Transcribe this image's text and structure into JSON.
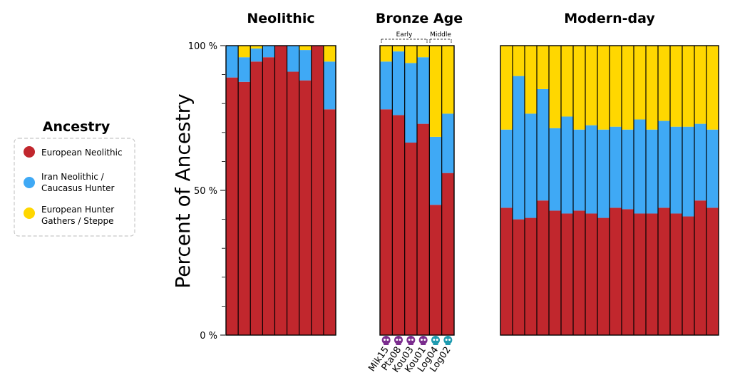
{
  "colors": {
    "european_neolithic": "#c1272d",
    "iran_neolithic": "#3fa9f5",
    "hunter_gatherers": "#ffd700",
    "skull_purple": "#7b2d8e",
    "skull_teal": "#1f9bb0"
  },
  "legend": {
    "title": "Ancestry",
    "items": [
      {
        "key": "european_neolithic",
        "lines": [
          "European Neolithic"
        ]
      },
      {
        "key": "iran_neolithic",
        "lines": [
          "Iran Neolithic /",
          "Caucasus Hunter"
        ]
      },
      {
        "key": "hunter_gatherers",
        "lines": [
          "European Hunter",
          "Gathers / Steppe"
        ]
      }
    ]
  },
  "chart_data": {
    "type": "bar",
    "stacked": true,
    "ylabel": "Percent of Ancestry",
    "ylim": [
      0,
      100
    ],
    "yticks": [
      {
        "value": 100,
        "label": "100 %"
      },
      {
        "value": 50,
        "label": "50 %"
      },
      {
        "value": 0,
        "label": "0 %"
      }
    ],
    "series_order": [
      "european_neolithic",
      "iran_neolithic",
      "hunter_gatherers"
    ],
    "panels": [
      {
        "title": "Neolithic",
        "samples": [
          {
            "label": "",
            "values": [
              89,
              11,
              0
            ]
          },
          {
            "label": "",
            "values": [
              87.5,
              8.5,
              4
            ]
          },
          {
            "label": "",
            "values": [
              94.5,
              4.5,
              1
            ]
          },
          {
            "label": "",
            "values": [
              96,
              4,
              0
            ]
          },
          {
            "label": "",
            "values": [
              100,
              0,
              0
            ]
          },
          {
            "label": "",
            "values": [
              91,
              9,
              0
            ]
          },
          {
            "label": "",
            "values": [
              88,
              10.5,
              1.5
            ]
          },
          {
            "label": "",
            "values": [
              100,
              0,
              0
            ]
          },
          {
            "label": "",
            "values": [
              78,
              16.5,
              5.5
            ]
          }
        ]
      },
      {
        "title": "Bronze Age",
        "groups": [
          {
            "label": "Early",
            "from": 0,
            "to": 3
          },
          {
            "label": "Middle",
            "from": 4,
            "to": 5
          }
        ],
        "samples": [
          {
            "label": "Mik15",
            "skull": "purple",
            "values": [
              78,
              16.5,
              5.5
            ]
          },
          {
            "label": "Pta08",
            "skull": "purple",
            "values": [
              76,
              22,
              2
            ]
          },
          {
            "label": "Kou03",
            "skull": "purple",
            "values": [
              66.5,
              27.5,
              6
            ]
          },
          {
            "label": "Kou01",
            "skull": "purple",
            "values": [
              73,
              23,
              4
            ]
          },
          {
            "label": "Log04",
            "skull": "teal",
            "values": [
              45,
              23.5,
              31.5
            ]
          },
          {
            "label": "Log02",
            "skull": "teal",
            "values": [
              56,
              20.5,
              23.5
            ]
          }
        ]
      },
      {
        "title": "Modern-day",
        "samples": [
          {
            "label": "",
            "values": [
              44,
              27,
              29
            ]
          },
          {
            "label": "",
            "values": [
              40,
              49.5,
              10.5
            ]
          },
          {
            "label": "",
            "values": [
              40.5,
              36,
              23.5
            ]
          },
          {
            "label": "",
            "values": [
              46.5,
              38.5,
              15
            ]
          },
          {
            "label": "",
            "values": [
              43,
              28.5,
              28.5
            ]
          },
          {
            "label": "",
            "values": [
              42,
              33.5,
              24.5
            ]
          },
          {
            "label": "",
            "values": [
              43,
              28,
              29
            ]
          },
          {
            "label": "",
            "values": [
              42,
              30.5,
              27.5
            ]
          },
          {
            "label": "",
            "values": [
              40.5,
              30.5,
              29
            ]
          },
          {
            "label": "",
            "values": [
              44,
              28,
              28
            ]
          },
          {
            "label": "",
            "values": [
              43.5,
              27.5,
              29
            ]
          },
          {
            "label": "",
            "values": [
              42,
              32.5,
              25.5
            ]
          },
          {
            "label": "",
            "values": [
              42,
              29,
              29
            ]
          },
          {
            "label": "",
            "values": [
              44,
              30,
              26
            ]
          },
          {
            "label": "",
            "values": [
              42,
              30,
              28
            ]
          },
          {
            "label": "",
            "values": [
              41,
              31,
              28
            ]
          },
          {
            "label": "",
            "values": [
              46.5,
              26.5,
              27
            ]
          },
          {
            "label": "",
            "values": [
              44,
              27,
              29
            ]
          }
        ]
      }
    ]
  }
}
